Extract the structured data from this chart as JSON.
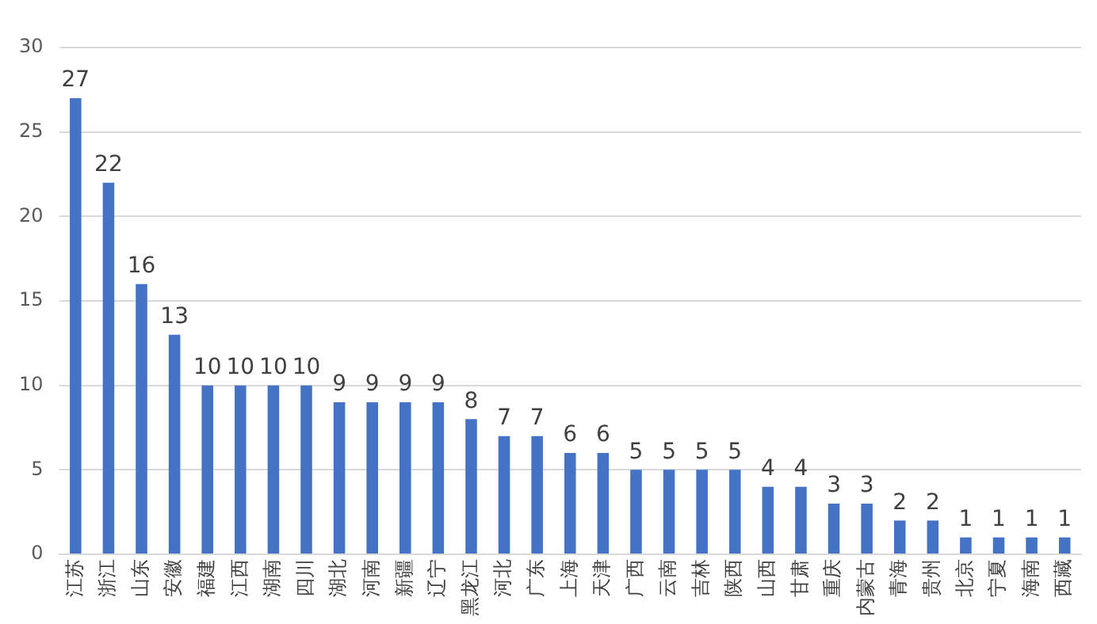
{
  "chart_data": {
    "type": "bar",
    "categories": [
      "江苏",
      "浙江",
      "山东",
      "安徽",
      "福建",
      "江西",
      "湖南",
      "四川",
      "湖北",
      "河南",
      "新疆",
      "辽宁",
      "黑龙江",
      "河北",
      "广东",
      "上海",
      "天津",
      "广西",
      "云南",
      "吉林",
      "陕西",
      "山西",
      "甘肃",
      "重庆",
      "内蒙古",
      "青海",
      "贵州",
      "北京",
      "宁夏",
      "海南",
      "西藏"
    ],
    "values": [
      27,
      22,
      16,
      13,
      10,
      10,
      10,
      10,
      9,
      9,
      9,
      9,
      8,
      7,
      7,
      6,
      6,
      5,
      5,
      5,
      5,
      4,
      4,
      3,
      3,
      2,
      2,
      1,
      1,
      1,
      1
    ],
    "color": "#4472c4",
    "ylim": [
      0,
      30
    ],
    "yticks": [
      0,
      5,
      10,
      15,
      20,
      25,
      30
    ],
    "grid": "y",
    "data_labels": true
  }
}
